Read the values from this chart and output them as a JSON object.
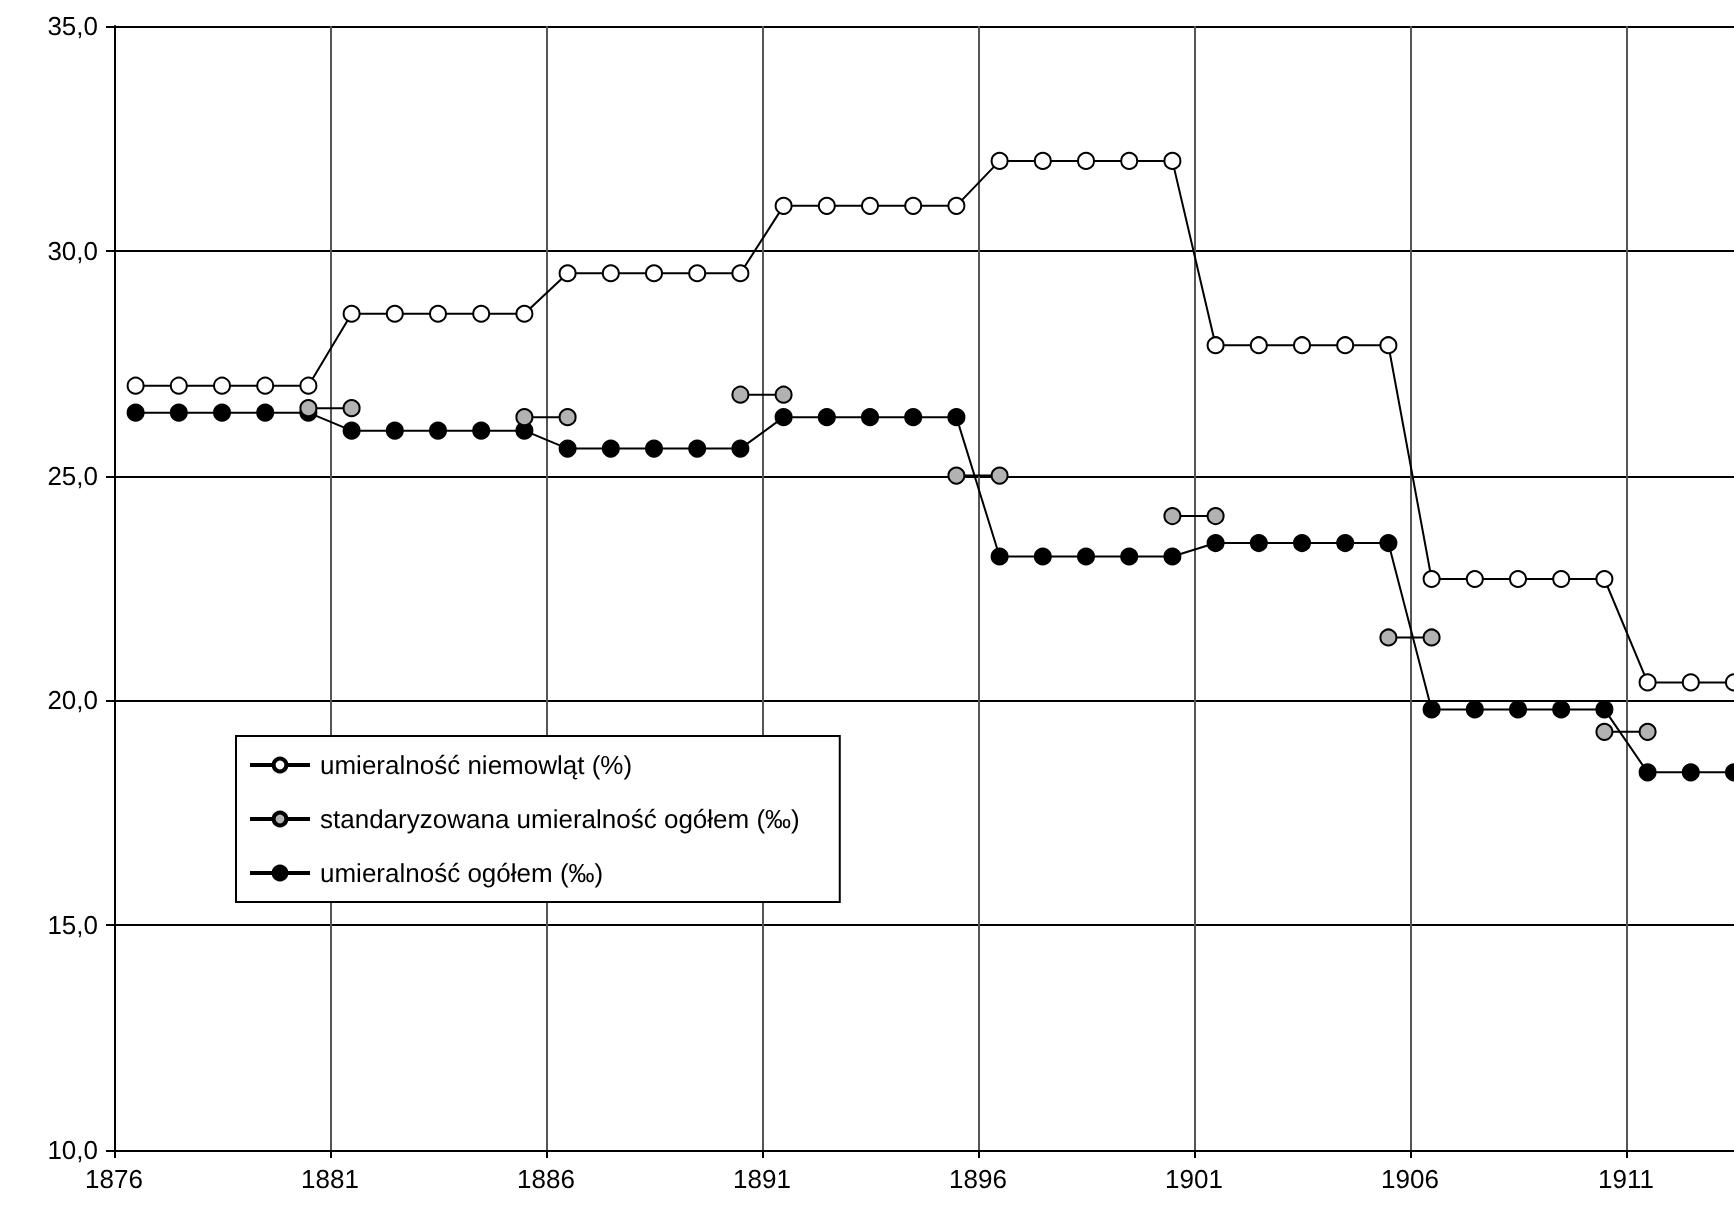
{
  "chart_data": {
    "type": "line",
    "x": [
      1876.5,
      1877.5,
      1878.5,
      1879.5,
      1880.5,
      1881.5,
      1882.5,
      1883.5,
      1884.5,
      1885.5,
      1886.5,
      1887.5,
      1888.5,
      1889.5,
      1890.5,
      1891.5,
      1892.5,
      1893.5,
      1894.5,
      1895.5,
      1896.5,
      1897.5,
      1898.5,
      1899.5,
      1900.5,
      1901.5,
      1902.5,
      1903.5,
      1904.5,
      1905.5,
      1906.5,
      1907.5,
      1908.5,
      1909.5,
      1910.5,
      1911.5,
      1912.5,
      1913.5
    ],
    "series": [
      {
        "name": "umieralność niemowląt (%)",
        "color": "#ffffff",
        "values": [
          27.0,
          27.0,
          27.0,
          27.0,
          27.0,
          28.6,
          28.6,
          28.6,
          28.6,
          28.6,
          29.5,
          29.5,
          29.5,
          29.5,
          29.5,
          31.0,
          31.0,
          31.0,
          31.0,
          31.0,
          32.0,
          32.0,
          32.0,
          32.0,
          32.0,
          27.9,
          27.9,
          27.9,
          27.9,
          27.9,
          22.7,
          22.7,
          22.7,
          22.7,
          22.7,
          20.4,
          20.4,
          20.4
        ]
      },
      {
        "name": "standaryzowana umieralność ogółem (‰)",
        "color": "#b2b2b2",
        "values": [
          null,
          null,
          null,
          null,
          26.5,
          26.5,
          null,
          null,
          null,
          26.3,
          26.3,
          null,
          null,
          null,
          26.8,
          26.8,
          null,
          null,
          null,
          25.0,
          25.0,
          null,
          null,
          null,
          24.1,
          24.1,
          null,
          null,
          null,
          21.4,
          21.4,
          null,
          null,
          null,
          19.3,
          19.3,
          null,
          null
        ]
      },
      {
        "name": "umieralność ogółem (‰)",
        "color": "#000000",
        "values": [
          26.4,
          26.4,
          26.4,
          26.4,
          26.4,
          26.0,
          26.0,
          26.0,
          26.0,
          26.0,
          25.6,
          25.6,
          25.6,
          25.6,
          25.6,
          26.3,
          26.3,
          26.3,
          26.3,
          26.3,
          23.2,
          23.2,
          23.2,
          23.2,
          23.2,
          23.5,
          23.5,
          23.5,
          23.5,
          23.5,
          19.8,
          19.8,
          19.8,
          19.8,
          19.8,
          18.4,
          18.4,
          18.4
        ]
      }
    ],
    "xlim": [
      1876,
      1913.5
    ],
    "xticks": [
      1876,
      1881,
      1886,
      1891,
      1896,
      1901,
      1906,
      1911
    ],
    "ylim": [
      10,
      35
    ],
    "yticks": [
      {
        "value": 10,
        "label": "10,0"
      },
      {
        "value": 15,
        "label": "15,0"
      },
      {
        "value": 20,
        "label": "20,0"
      },
      {
        "value": 25,
        "label": "25,0"
      },
      {
        "value": 30,
        "label": "30,0"
      },
      {
        "value": 35,
        "label": "35,0"
      }
    ],
    "grid": true,
    "legend": "bottom left",
    "marker": "circle",
    "line_style": "solid"
  }
}
